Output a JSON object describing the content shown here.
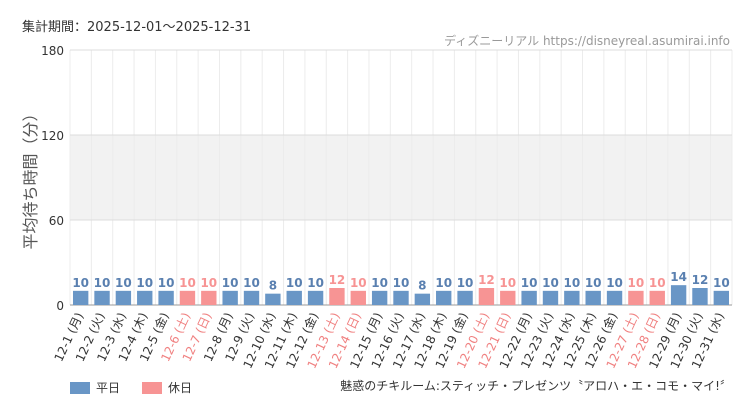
{
  "header": {
    "period_label": "集計期間：2025-12-01～2025-12-31",
    "credit": "ディズニーリアル https://disneyreal.asumirai.info"
  },
  "footer": {
    "attraction_title": "魅惑のチキルーム:スティッチ・プレゼンツ〝アロハ・エ・コモ・マイ!〞"
  },
  "chart_data": {
    "type": "bar",
    "ylabel": "平均待ち時間（分）",
    "ylim": [
      0,
      180
    ],
    "yticks": [
      0,
      60,
      120,
      180
    ],
    "grid": true,
    "legend_placement": "bottom-left",
    "colors": {
      "weekday": "#6996c6",
      "holiday": "#f79494",
      "holiday_label": "#f08080",
      "weekday_label": "#333333",
      "value_label": "#5a80b0",
      "band": "#f2f2f2"
    },
    "legend": [
      {
        "key": "weekday",
        "label": "平日"
      },
      {
        "key": "holiday",
        "label": "休日"
      }
    ],
    "categories": [
      "12-1 (月)",
      "12-2 (火)",
      "12-3 (水)",
      "12-4 (木)",
      "12-5 (金)",
      "12-6 (土)",
      "12-7 (日)",
      "12-8 (月)",
      "12-9 (火)",
      "12-10 (水)",
      "12-11 (木)",
      "12-12 (金)",
      "12-13 (土)",
      "12-14 (日)",
      "12-15 (月)",
      "12-16 (火)",
      "12-17 (水)",
      "12-18 (木)",
      "12-19 (金)",
      "12-20 (土)",
      "12-21 (日)",
      "12-22 (月)",
      "12-23 (火)",
      "12-24 (水)",
      "12-25 (木)",
      "12-26 (金)",
      "12-27 (土)",
      "12-28 (日)",
      "12-29 (月)",
      "12-30 (火)",
      "12-31 (水)"
    ],
    "values": [
      10,
      10,
      10,
      10,
      10,
      10,
      10,
      10,
      10,
      8,
      10,
      10,
      12,
      10,
      10,
      10,
      8,
      10,
      10,
      12,
      10,
      10,
      10,
      10,
      10,
      10,
      10,
      10,
      14,
      12,
      10
    ],
    "day_type": [
      "weekday",
      "weekday",
      "weekday",
      "weekday",
      "weekday",
      "holiday",
      "holiday",
      "weekday",
      "weekday",
      "weekday",
      "weekday",
      "weekday",
      "holiday",
      "holiday",
      "weekday",
      "weekday",
      "weekday",
      "weekday",
      "weekday",
      "holiday",
      "holiday",
      "weekday",
      "weekday",
      "weekday",
      "weekday",
      "weekday",
      "holiday",
      "holiday",
      "weekday",
      "weekday",
      "weekday"
    ]
  }
}
